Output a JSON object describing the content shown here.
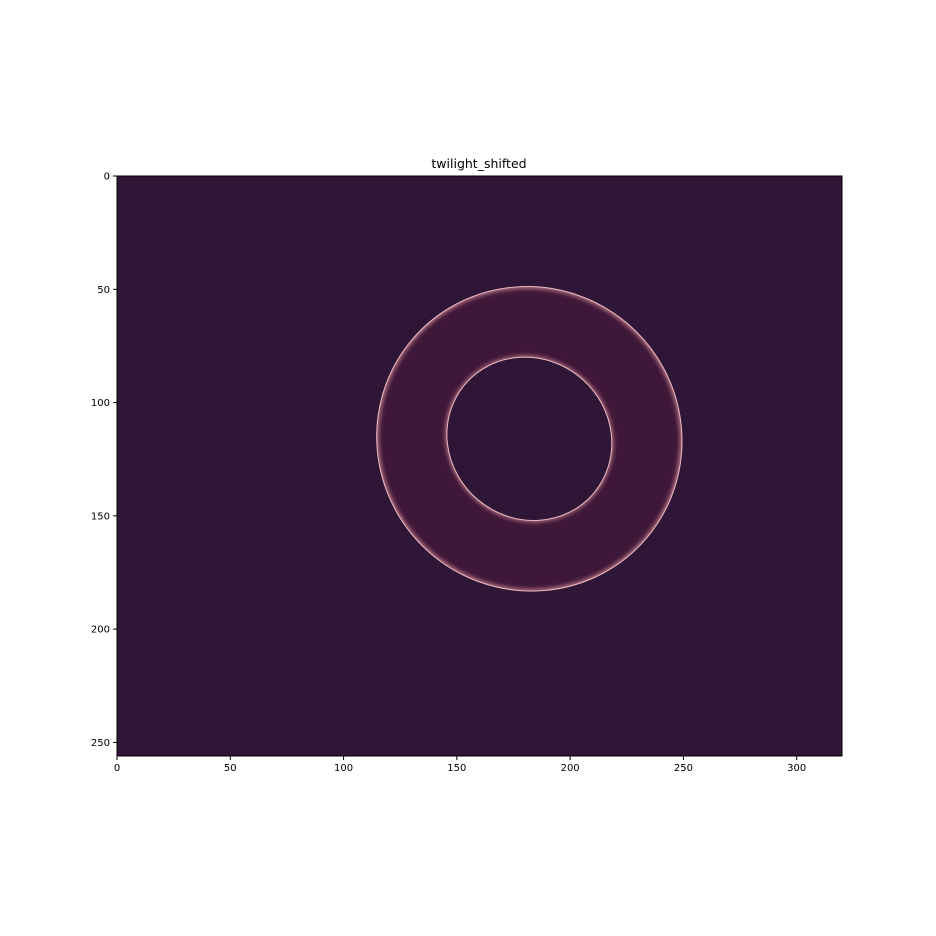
{
  "chart_data": {
    "type": "heatmap",
    "title": "twilight_shifted",
    "colormap": "twilight_shifted",
    "xlabel": "",
    "ylabel": "",
    "image_width": 320,
    "image_height": 256,
    "xlim": [
      0,
      320
    ],
    "ylim": [
      256,
      0
    ],
    "x_ticks": [
      0,
      50,
      100,
      150,
      200,
      250,
      300
    ],
    "y_ticks": [
      0,
      50,
      100,
      150,
      200,
      250
    ],
    "background_color": "#2f1536",
    "shape": {
      "kind": "elliptical-ring",
      "center": [
        182,
        116
      ],
      "outer_axes": [
        68,
        67
      ],
      "inner_axes": [
        37,
        35
      ],
      "rotation_deg": 40,
      "edge_color": "#d48b98",
      "fill_color": "#3f1738"
    }
  }
}
